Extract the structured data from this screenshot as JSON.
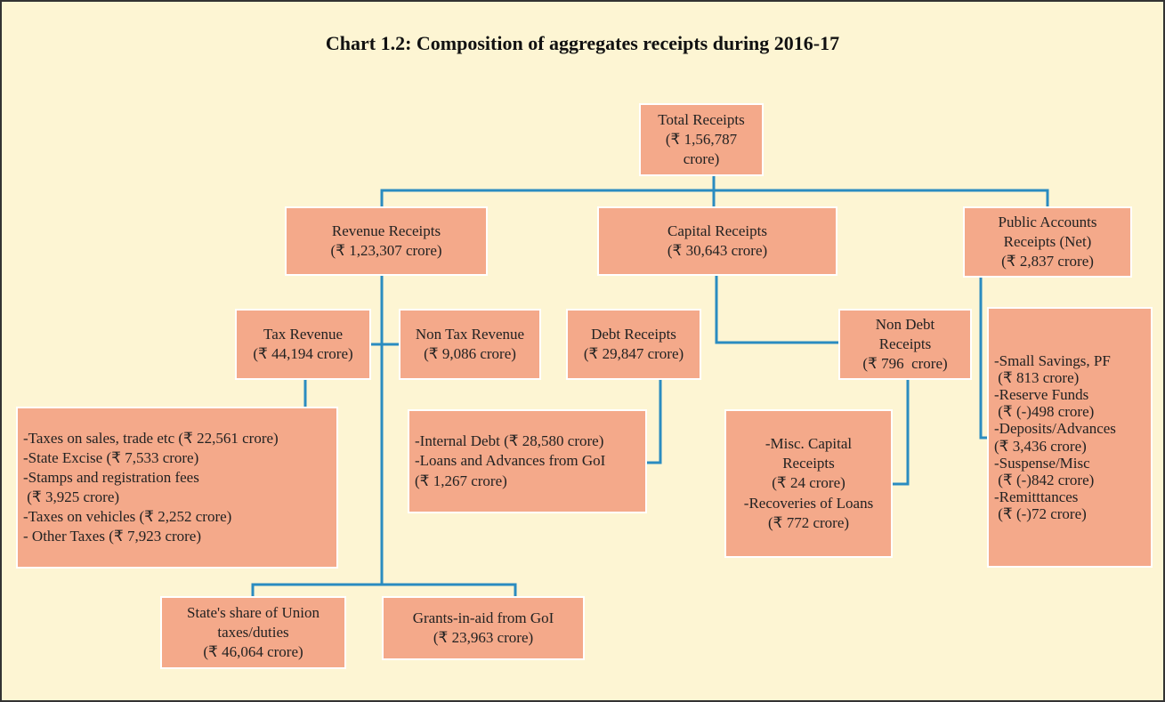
{
  "title": "Chart 1.2: Composition of aggregates receipts during 2016-17",
  "nodes": [
    {
      "lines": [
        "Total Receipts",
        "(₹ 1,56,787",
        "crore)"
      ]
    },
    {
      "lines": [
        "Revenue Receipts",
        "(₹ 1,23,307 crore)"
      ]
    },
    {
      "lines": [
        "Capital Receipts",
        "(₹ 30,643 crore)"
      ]
    },
    {
      "lines": [
        "Public Accounts",
        "Receipts (Net)",
        "(₹ 2,837 crore)"
      ]
    },
    {
      "lines": [
        "Tax Revenue",
        "(₹ 44,194 crore)"
      ]
    },
    {
      "lines": [
        "Non Tax Revenue",
        "(₹ 9,086 crore)"
      ]
    },
    {
      "lines": [
        "Debt Receipts",
        "(₹ 29,847 crore)"
      ]
    },
    {
      "lines": [
        "Non Debt",
        "Receipts",
        "(₹ 796  crore)"
      ]
    },
    {
      "lines": [
        "-Taxes on sales, trade etc (₹ 22,561 crore)",
        "-State Excise (₹ 7,533 crore)",
        "-Stamps and registration fees",
        " (₹ 3,925 crore)",
        "-Taxes on vehicles (₹ 2,252 crore)",
        "- Other Taxes (₹ 7,923 crore)"
      ]
    },
    {
      "lines": [
        "-Internal Debt (₹ 28,580 crore)",
        "-Loans and Advances from GoI",
        "(₹ 1,267 crore)"
      ]
    },
    {
      "lines": [
        "-Misc. Capital",
        "Receipts",
        "(₹ 24 crore)",
        "-Recoveries of Loans",
        "(₹ 772 crore)"
      ]
    },
    {
      "lines": [
        "-Small Savings, PF",
        " (₹ 813 crore)",
        "-Reserve Funds",
        " (₹ (-)498 crore)",
        "-Deposits/Advances",
        "(₹ 3,436 crore)",
        "-Suspense/Misc",
        " (₹ (-)842 crore)",
        "-Remitttances",
        " (₹ (-)72 crore)"
      ]
    },
    {
      "lines": [
        "State's share of Union",
        "taxes/duties",
        "(₹ 46,064 crore)"
      ]
    },
    {
      "lines": [
        "Grants-in-aid from GoI",
        "(₹ 23,963 crore)"
      ]
    }
  ]
}
